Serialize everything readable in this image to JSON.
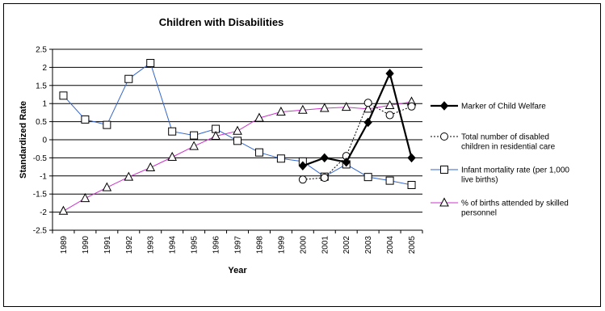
{
  "chart_data": {
    "type": "line",
    "title": "Children with Disabilities",
    "xlabel": "Year",
    "ylabel": "Standardized Rate",
    "ylim": [
      -2.5,
      2.5
    ],
    "yticks": [
      "2.5",
      "2",
      "1.5",
      "1",
      "0.5",
      "0",
      "-0.5",
      "-1",
      "-1.5",
      "-2",
      "-2.5"
    ],
    "grid": true,
    "legend_position": "right",
    "x": [
      "1989",
      "1990",
      "1991",
      "1992",
      "1993",
      "1994",
      "1995",
      "1996",
      "1997",
      "1998",
      "1999",
      "2000",
      "2001",
      "2002",
      "2003",
      "2004",
      "2005"
    ],
    "series": [
      {
        "name": "Marker of Child Welfare",
        "legend_lines": [
          "Marker of Child Welfare"
        ],
        "color": "#000000",
        "marker": "diamond-filled",
        "line_style": "solid-bold",
        "values": [
          null,
          null,
          null,
          null,
          null,
          null,
          null,
          null,
          null,
          null,
          null,
          -0.72,
          -0.5,
          -0.62,
          0.48,
          1.83,
          -0.5
        ]
      },
      {
        "name": "Total number of disabled children in residential care",
        "legend_lines": [
          "Total number of disabled",
          "children in residential care"
        ],
        "color": "#000000",
        "marker": "circle-open",
        "line_style": "dotted",
        "values": [
          null,
          null,
          null,
          null,
          null,
          null,
          null,
          null,
          null,
          null,
          null,
          -1.1,
          -1.05,
          -0.45,
          1.02,
          0.68,
          0.92
        ]
      },
      {
        "name": "Infant mortality rate (per 1,000 live births)",
        "legend_lines": [
          "Infant mortality rate (per 1,000",
          "live births)"
        ],
        "color": "#3366cc",
        "marker": "square-open",
        "line_style": "solid",
        "values": [
          1.22,
          0.56,
          0.41,
          1.68,
          2.12,
          0.23,
          0.12,
          0.3,
          -0.03,
          -0.35,
          -0.52,
          -0.6,
          -1.02,
          -0.68,
          -1.03,
          -1.13,
          -1.25
        ]
      },
      {
        "name": "% of births attended by skilled personnel",
        "legend_lines": [
          " % of births attended by skilled",
          "personnel"
        ],
        "color": "#cc33cc",
        "marker": "triangle-open",
        "line_style": "solid",
        "values": [
          -1.97,
          -1.62,
          -1.32,
          -1.03,
          -0.77,
          -0.48,
          -0.18,
          0.1,
          0.24,
          0.6,
          0.77,
          0.82,
          0.87,
          0.9,
          0.85,
          0.95,
          1.05
        ]
      }
    ]
  }
}
